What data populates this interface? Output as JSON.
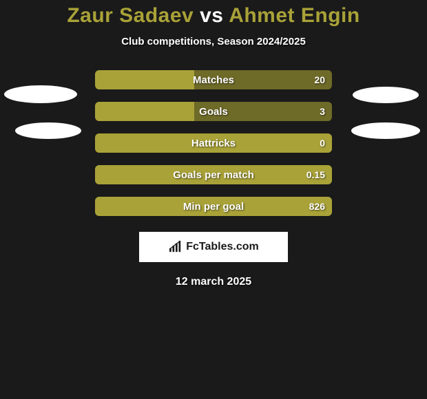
{
  "title": {
    "player1": "Zaur Sadaev",
    "vs": "vs",
    "player2": "Ahmet Engin",
    "color_player": "#a9a238",
    "color_vs": "#ffffff"
  },
  "subtitle": "Club competitions, Season 2024/2025",
  "colors": {
    "background": "#1a1a1a",
    "bar_left": "#a9a238",
    "bar_right": "#6e6a28",
    "bar_empty": "#3b3a1f",
    "text": "#ffffff"
  },
  "stats": [
    {
      "label": "Matches",
      "value_right": "20",
      "left_pct": 42,
      "right_pct": 58
    },
    {
      "label": "Goals",
      "value_right": "3",
      "left_pct": 42,
      "right_pct": 58
    },
    {
      "label": "Hattricks",
      "value_right": "0",
      "left_pct": 100,
      "right_pct": 0
    },
    {
      "label": "Goals per match",
      "value_right": "0.15",
      "left_pct": 100,
      "right_pct": 0
    },
    {
      "label": "Min per goal",
      "value_right": "826",
      "left_pct": 100,
      "right_pct": 0
    }
  ],
  "brand": "FcTables.com",
  "date": "12 march 2025"
}
